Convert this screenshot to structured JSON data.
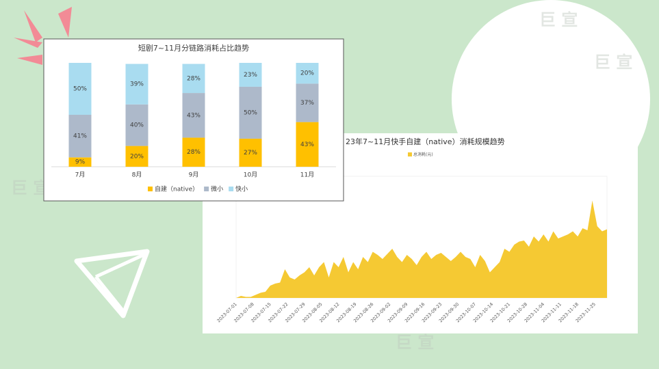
{
  "watermark": "巨 宣",
  "chart_data": [
    {
      "type": "bar",
      "stacked": true,
      "title": "短剧7~11月分链路消耗占比趋势",
      "categories": [
        "7月",
        "8月",
        "9月",
        "10月",
        "11月"
      ],
      "ylim": [
        0,
        100
      ],
      "series": [
        {
          "name": "自建（native）",
          "color": "#ffc000",
          "values": [
            9,
            20,
            28,
            27,
            43
          ],
          "value_labels": [
            "9%",
            "20%",
            "28%",
            "27%",
            "43%"
          ]
        },
        {
          "name": "微小",
          "color": "#adb9ca",
          "values": [
            41,
            40,
            43,
            50,
            37
          ],
          "value_labels": [
            "41%",
            "40%",
            "43%",
            "50%",
            "37%"
          ]
        },
        {
          "name": "快小",
          "color": "#a9dcf0",
          "values": [
            50,
            39,
            28,
            23,
            20
          ],
          "value_labels": [
            "50%",
            "39%",
            "28%",
            "23%",
            "20%"
          ]
        }
      ]
    },
    {
      "type": "area",
      "title": "23年7~11月快手自建（native）消耗规模趋势",
      "series_name": "总消耗(元)",
      "color": "#f5c933",
      "x": [
        "2023-07-01",
        "2023-07-03",
        "2023-07-05",
        "2023-07-07",
        "2023-07-09",
        "2023-07-11",
        "2023-07-13",
        "2023-07-15",
        "2023-07-17",
        "2023-07-19",
        "2023-07-21",
        "2023-07-23",
        "2023-07-25",
        "2023-07-27",
        "2023-07-29",
        "2023-07-31",
        "2023-08-02",
        "2023-08-04",
        "2023-08-06",
        "2023-08-08",
        "2023-08-10",
        "2023-08-12",
        "2023-08-14",
        "2023-08-16",
        "2023-08-18",
        "2023-08-20",
        "2023-08-22",
        "2023-08-24",
        "2023-08-26",
        "2023-08-28",
        "2023-08-30",
        "2023-09-01",
        "2023-09-03",
        "2023-09-05",
        "2023-09-07",
        "2023-09-09",
        "2023-09-11",
        "2023-09-13",
        "2023-09-15",
        "2023-09-17",
        "2023-09-19",
        "2023-09-21",
        "2023-09-23",
        "2023-09-25",
        "2023-09-27",
        "2023-09-29",
        "2023-10-01",
        "2023-10-03",
        "2023-10-05",
        "2023-10-07",
        "2023-10-09",
        "2023-10-11",
        "2023-10-13",
        "2023-10-15",
        "2023-10-17",
        "2023-10-19",
        "2023-10-21",
        "2023-10-23",
        "2023-10-25",
        "2023-10-27",
        "2023-10-29",
        "2023-10-31",
        "2023-11-02",
        "2023-11-04",
        "2023-11-06",
        "2023-11-08",
        "2023-11-10",
        "2023-11-12",
        "2023-11-14",
        "2023-11-16",
        "2023-11-18",
        "2023-11-20",
        "2023-11-22",
        "2023-11-24",
        "2023-11-26",
        "2023-11-28",
        "2023-11-30"
      ],
      "values": [
        0,
        2,
        1,
        1,
        3,
        5,
        6,
        12,
        14,
        15,
        28,
        20,
        18,
        22,
        25,
        30,
        22,
        30,
        35,
        20,
        35,
        30,
        40,
        25,
        35,
        28,
        40,
        35,
        45,
        42,
        38,
        43,
        48,
        40,
        35,
        42,
        38,
        32,
        40,
        45,
        38,
        42,
        44,
        40,
        36,
        40,
        45,
        40,
        38,
        30,
        42,
        36,
        25,
        30,
        35,
        48,
        45,
        52,
        55,
        56,
        50,
        60,
        55,
        62,
        55,
        65,
        58,
        60,
        62,
        65,
        60,
        68,
        66,
        95,
        70,
        65,
        67
      ],
      "ylim": [
        0,
        100
      ],
      "xticks": [
        "2023-07-01",
        "2023-07-08",
        "2023-07-15",
        "2023-07-22",
        "2023-07-29",
        "2023-08-05",
        "2023-08-12",
        "2023-08-19",
        "2023-08-26",
        "2023-09-02",
        "2023-09-09",
        "2023-09-16",
        "2023-09-23",
        "2023-09-30",
        "2023-10-07",
        "2023-10-14",
        "2023-10-21",
        "2023-10-28",
        "2023-11-04",
        "2023-11-11",
        "2023-11-18",
        "2023-11-25"
      ]
    }
  ]
}
